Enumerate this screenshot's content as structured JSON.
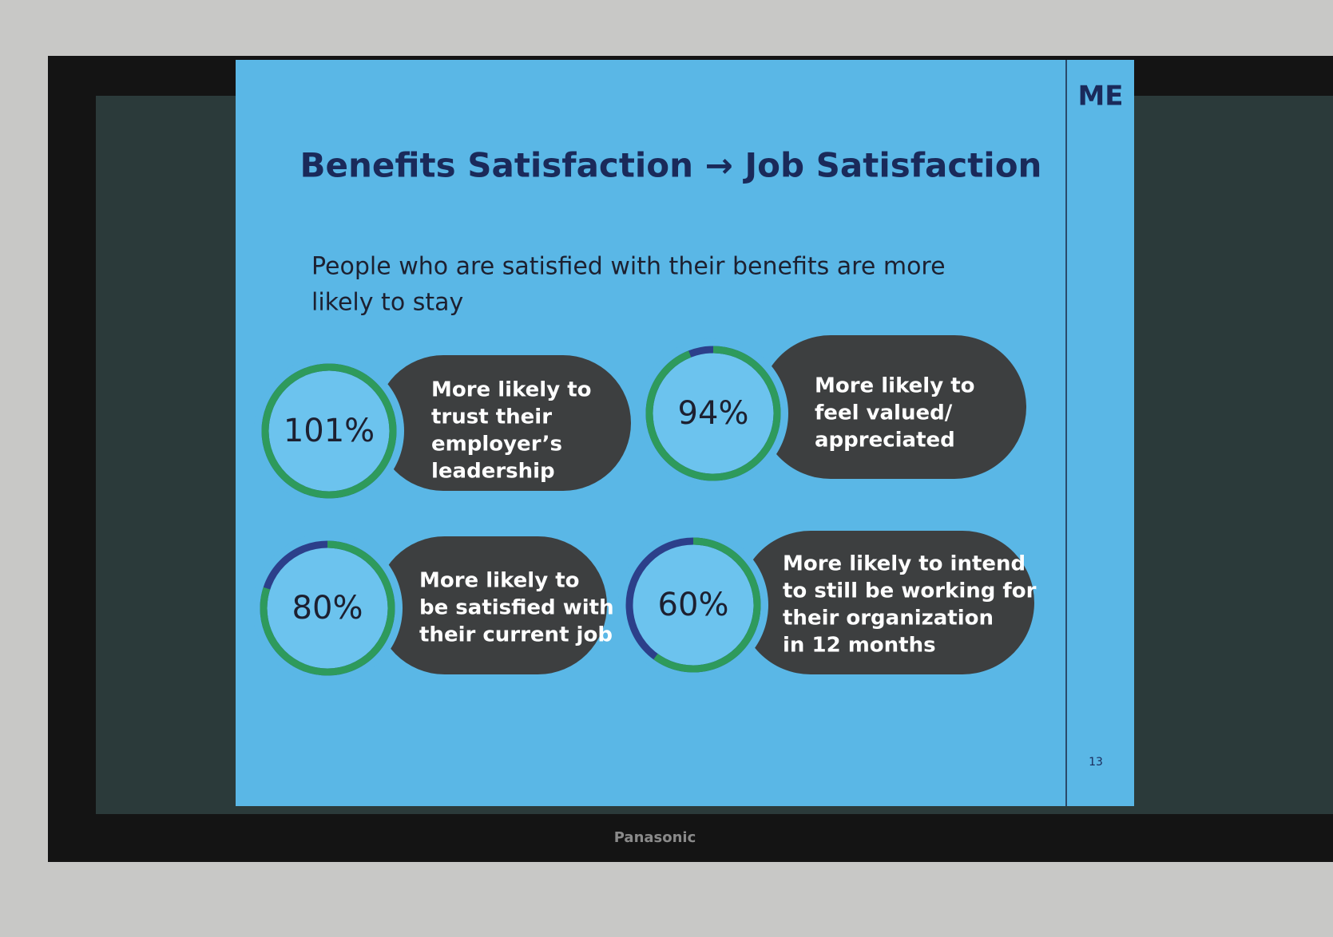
{
  "slide": {
    "title": "Benefits Satisfaction → Job Satisfaction",
    "subtitle_lines": [
      "People who are satisfied with their benefits are more",
      "likely to stay"
    ],
    "logo": "ME",
    "page_number": "13",
    "stats": [
      {
        "percent": 101,
        "percent_label": "101%",
        "description_lines": [
          "More likely to",
          "trust their",
          "employer’s",
          "leadership"
        ]
      },
      {
        "percent": 94,
        "percent_label": "94%",
        "description_lines": [
          "More likely to",
          "feel valued/",
          "appreciated"
        ]
      },
      {
        "percent": 80,
        "percent_label": "80%",
        "description_lines": [
          "More likely to",
          "be satisfied with",
          "their current job"
        ]
      },
      {
        "percent": 60,
        "percent_label": "60%",
        "description_lines": [
          "More likely to intend",
          "to still be working for",
          "their organization",
          "in 12 months"
        ]
      }
    ]
  },
  "monitor": {
    "brand": "Panasonic"
  }
}
